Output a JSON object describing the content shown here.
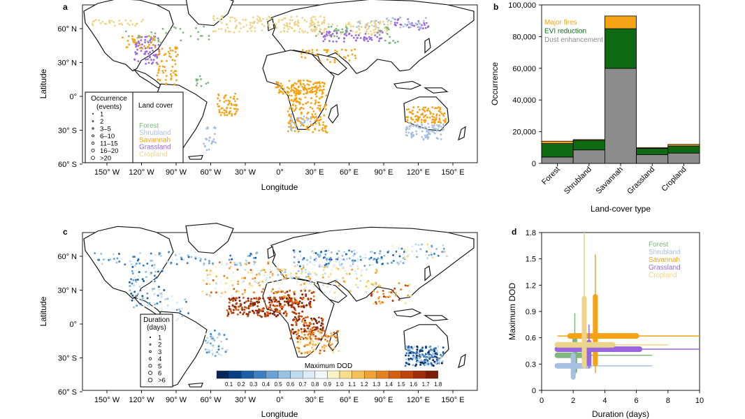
{
  "figure": {
    "panels": {
      "a": "a",
      "b": "b",
      "c": "c",
      "d": "d"
    }
  },
  "colors": {
    "forest": "#7fb77e",
    "shrubland": "#a8c0e0",
    "savannah": "#f5a315",
    "grassland": "#9966dd",
    "cropland": "#ecd58a",
    "major_fires": "#f5a315",
    "evi_reduction": "#0f6a14",
    "dust_enhancement": "#8c8c8c",
    "land": "#ffffff",
    "coast": "#111111",
    "border": "#bbbbbb"
  },
  "map_axes": {
    "lon_ticks": [
      "150° W",
      "120° W",
      "90° W",
      "60° W",
      "30° W",
      "0°",
      "30° E",
      "60° E",
      "90° E",
      "120° E",
      "150° E"
    ],
    "lat_ticks": [
      "60° N",
      "30° N",
      "0°",
      "30° S",
      "60° S"
    ],
    "xlabel": "Longitude",
    "ylabel": "Latitude"
  },
  "legend_a": {
    "occurrence_title_1": "Occurrence",
    "occurrence_title_2": "(events)",
    "occurrence_items": [
      "1",
      "2",
      "3–5",
      "6–10",
      "11–15",
      "16–20",
      ">20"
    ],
    "landcover_title": "Land cover",
    "landcover_items": [
      "Forest",
      "Shrubland",
      "Savannah",
      "Grassland",
      "Cropland"
    ]
  },
  "legend_c": {
    "duration_title_1": "Duration",
    "duration_title_2": "(days)",
    "duration_items": [
      "1",
      "2",
      "3",
      "4",
      "5",
      "6",
      ">6"
    ],
    "colorbar_title": "Maximum DOD",
    "colorbar_ticks": [
      "0.1",
      "0.2",
      "0.3",
      "0.4",
      "0.5",
      "0.6",
      "0.7",
      "0.8",
      "0.9",
      "1.0",
      "1.1",
      "1.2",
      "1.3",
      "1.4",
      "1.5",
      "1.6",
      "1.7",
      "1.8"
    ],
    "colorbar_colors": [
      "#08255a",
      "#0b3f84",
      "#1b5fa8",
      "#3d80c0",
      "#6aa3d3",
      "#97c2e2",
      "#bedbee",
      "#dcebf5",
      "#f1f6f8",
      "#fbf3c8",
      "#f8de88",
      "#f6c258",
      "#f0a235",
      "#e7801f",
      "#d55f10",
      "#bd440b",
      "#9e2e09",
      "#7c1e07"
    ]
  },
  "chart_data": [
    {
      "panel": "b",
      "type": "bar",
      "stacked": true,
      "categories": [
        "Forest",
        "Shrubland",
        "Savannah",
        "Grassland",
        "Cropland"
      ],
      "series": [
        {
          "name": "Dust enhancement",
          "values": [
            4000,
            8500,
            60000,
            5500,
            6500
          ]
        },
        {
          "name": "EVI reduction",
          "values": [
            8500,
            6000,
            25000,
            4000,
            4500
          ]
        },
        {
          "name": "Major fires",
          "values": [
            1500,
            500,
            8000,
            500,
            1000
          ]
        }
      ],
      "title": "",
      "xlabel": "Land-cover type",
      "ylabel": "Occurrence",
      "ylim": [
        0,
        100000
      ],
      "yticks": [
        "0",
        "20,000",
        "40,000",
        "60,000",
        "80,000",
        "100,000"
      ],
      "legend": "top-left"
    },
    {
      "panel": "d",
      "type": "scatter",
      "title": "",
      "xlabel": "Duration (days)",
      "ylabel": "Maximum DOD",
      "xlim": [
        0,
        10
      ],
      "ylim": [
        0,
        1.8
      ],
      "xticks": [
        "0",
        "2",
        "4",
        "6",
        "8",
        "10"
      ],
      "yticks": [
        "0",
        "0.3",
        "0.6",
        "0.9",
        "1.2",
        "1.5",
        "1.8"
      ],
      "legend": "top-right",
      "series": [
        {
          "name": "Forest",
          "x": 2.1,
          "y": 0.4,
          "x_min": 1.0,
          "x_max": 7.0,
          "x_q1": 1.0,
          "x_q3": 2.9,
          "y_min": 0.15,
          "y_max": 0.88,
          "y_q1": 0.22,
          "y_q3": 0.62
        },
        {
          "name": "Shrubland",
          "x": 2.0,
          "y": 0.28,
          "x_min": 1.0,
          "x_max": 7.0,
          "x_q1": 1.0,
          "x_q3": 3.0,
          "y_min": 0.12,
          "y_max": 0.45,
          "y_q1": 0.15,
          "y_q3": 0.4
        },
        {
          "name": "Savannah",
          "x": 3.4,
          "y": 0.62,
          "x_min": 1.0,
          "x_max": 10.0,
          "x_q1": 1.8,
          "x_q3": 6.0,
          "y_min": 0.2,
          "y_max": 1.55,
          "y_q1": 0.3,
          "y_q3": 1.07
        },
        {
          "name": "Grassland",
          "x": 3.0,
          "y": 0.47,
          "x_min": 1.0,
          "x_max": 10.0,
          "x_q1": 1.0,
          "x_q3": 6.2,
          "y_min": 0.25,
          "y_max": 0.75,
          "y_q1": 0.3,
          "y_q3": 0.55
        },
        {
          "name": "Cropland",
          "x": 2.7,
          "y": 0.52,
          "x_min": 1.0,
          "x_max": 8.0,
          "x_q1": 1.0,
          "x_q3": 4.5,
          "y_min": 0.25,
          "y_max": 1.8,
          "y_q1": 0.28,
          "y_q3": 1.05
        }
      ]
    }
  ]
}
